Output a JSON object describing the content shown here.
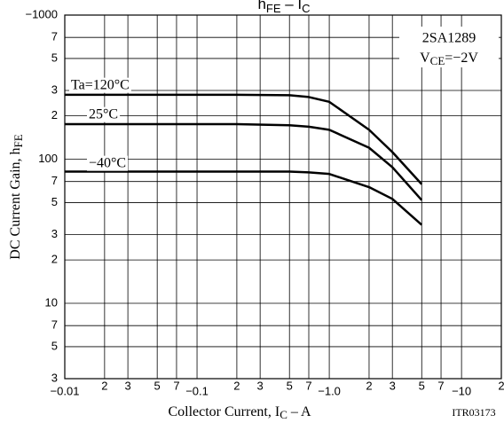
{
  "chart_data": {
    "type": "line",
    "title": [
      "h",
      "FE",
      " – I",
      "C"
    ],
    "x_label": [
      "Collector Current, I",
      "C",
      " – A"
    ],
    "y_label": [
      "DC Current Gain, h",
      "FE"
    ],
    "annotations": {
      "device": "2SA1289",
      "condition": [
        "V",
        "CE",
        "=−2V"
      ],
      "code": "ITR03173"
    },
    "log_x": true,
    "log_y": true,
    "grid": true,
    "color": "#000000",
    "xlim": [
      -0.01,
      -20
    ],
    "ylim": [
      3,
      1000
    ],
    "xticks": [
      {
        "value": -0.01,
        "label": "−0.01"
      },
      {
        "value": -0.02,
        "label": "2"
      },
      {
        "value": -0.03,
        "label": "3"
      },
      {
        "value": -0.05,
        "label": "5"
      },
      {
        "value": -0.07,
        "label": "7"
      },
      {
        "value": -0.1,
        "label": "−0.1"
      },
      {
        "value": -0.2,
        "label": "2"
      },
      {
        "value": -0.3,
        "label": "3"
      },
      {
        "value": -0.5,
        "label": "5"
      },
      {
        "value": -0.7,
        "label": "7"
      },
      {
        "value": -1.0,
        "label": "−1.0"
      },
      {
        "value": -2,
        "label": "2"
      },
      {
        "value": -3,
        "label": "3"
      },
      {
        "value": -5,
        "label": "5"
      },
      {
        "value": -7,
        "label": "7"
      },
      {
        "value": -10,
        "label": "−10"
      },
      {
        "value": -20,
        "label": "2"
      }
    ],
    "yticks": [
      3,
      5,
      7,
      10,
      {
        "value": 20,
        "label": "2"
      },
      {
        "value": 30,
        "label": "3"
      },
      {
        "value": 50,
        "label": "5"
      },
      {
        "value": 70,
        "label": "7"
      },
      100,
      {
        "value": 200,
        "label": "2"
      },
      {
        "value": 300,
        "label": "3"
      },
      {
        "value": 500,
        "label": "5"
      },
      {
        "value": 700,
        "label": "7"
      },
      {
        "value": 1000,
        "label": "−1000"
      }
    ],
    "x": [
      -0.01,
      -0.02,
      -0.05,
      -0.1,
      -0.2,
      -0.5,
      -0.7,
      -1.0,
      -2,
      -3,
      -5
    ],
    "series": [
      {
        "name": "Ta=120°C",
        "values": [
          280,
          280,
          280,
          280,
          280,
          278,
          270,
          250,
          160,
          112,
          67
        ]
      },
      {
        "name": "25°C",
        "values": [
          175,
          175,
          175,
          175,
          175,
          172,
          168,
          160,
          120,
          88,
          52
        ]
      },
      {
        "name": "−40°C",
        "values": [
          82,
          82,
          82,
          82,
          82,
          82,
          81,
          79,
          64,
          53,
          35
        ]
      }
    ]
  }
}
